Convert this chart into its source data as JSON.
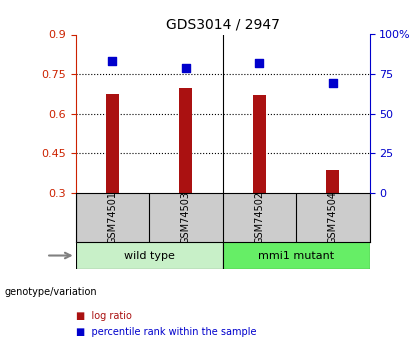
{
  "title": "GDS3014 / 2947",
  "samples": [
    "GSM74501",
    "GSM74503",
    "GSM74502",
    "GSM74504"
  ],
  "log_ratio": [
    0.675,
    0.695,
    0.67,
    0.385
  ],
  "percentile_rank": [
    0.835,
    0.785,
    0.82,
    0.69
  ],
  "groups": [
    {
      "label": "wild type",
      "samples": [
        "GSM74501",
        "GSM74503"
      ],
      "color": "#c8f0c8"
    },
    {
      "label": "mmi1 mutant",
      "samples": [
        "GSM74502",
        "GSM74504"
      ],
      "color": "#66ee66"
    }
  ],
  "ylim_left": [
    0.3,
    0.9
  ],
  "yticks_left": [
    0.3,
    0.45,
    0.6,
    0.75,
    0.9
  ],
  "yticks_right": [
    0,
    25,
    50,
    75,
    100
  ],
  "bar_color": "#aa1111",
  "dot_color": "#0000cc",
  "background_color": "#ffffff",
  "plot_bg": "#ffffff",
  "grid_color": "#000000",
  "sample_box_color": "#cccccc",
  "group_row1_color": "#d0d0d0",
  "left_label_color": "#cc2200",
  "right_label_color": "#0000cc",
  "genotype_label": "genotype/variation",
  "legend_log_ratio": "log ratio",
  "legend_percentile": "percentile rank within the sample"
}
